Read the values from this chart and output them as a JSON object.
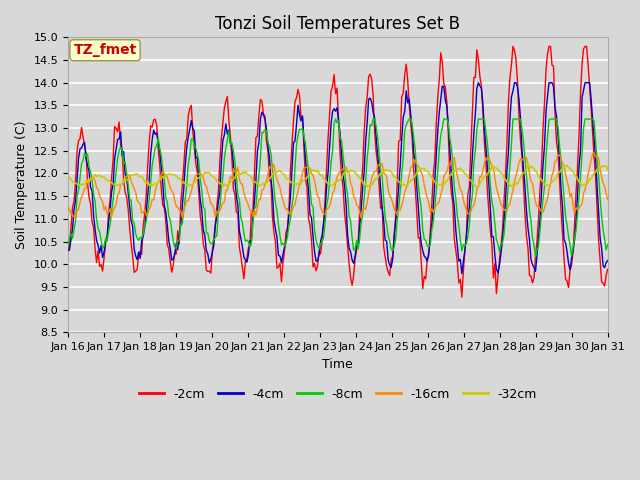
{
  "title": "Tonzi Soil Temperatures Set B",
  "xlabel": "Time",
  "ylabel": "Soil Temperature (C)",
  "ylim": [
    8.5,
    15.0
  ],
  "yticks": [
    8.5,
    9.0,
    9.5,
    10.0,
    10.5,
    11.0,
    11.5,
    12.0,
    12.5,
    13.0,
    13.5,
    14.0,
    14.5,
    15.0
  ],
  "xtick_labels": [
    "Jan 16",
    "Jan 17",
    "Jan 18",
    "Jan 19",
    "Jan 20",
    "Jan 21",
    "Jan 22",
    "Jan 23",
    "Jan 24",
    "Jan 25",
    "Jan 26",
    "Jan 27",
    "Jan 28",
    "Jan 29",
    "Jan 30",
    "Jan 31"
  ],
  "series_colors": [
    "#ff0000",
    "#0000cc",
    "#00cc00",
    "#ff8800",
    "#cccc00"
  ],
  "series_labels": [
    "-2cm",
    "-4cm",
    "-8cm",
    "-16cm",
    "-32cm"
  ],
  "background_color": "#d8d8d8",
  "plot_bg_color": "#d8d8d8",
  "grid_color": "#ffffff",
  "annotation_text": "TZ_fmet",
  "annotation_color": "#cc0000",
  "annotation_bg": "#ffffcc",
  "title_fontsize": 12,
  "label_fontsize": 9,
  "tick_fontsize": 8,
  "legend_fontsize": 9
}
